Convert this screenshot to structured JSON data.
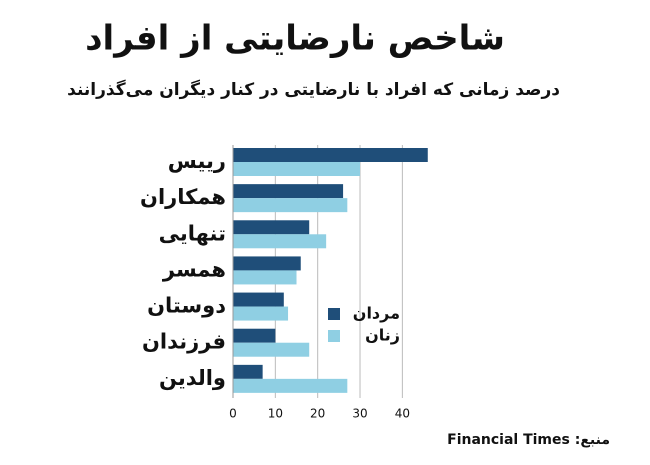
{
  "chart_data": {
    "type": "bar",
    "orientation": "horizontal",
    "title": "شاخص نارضایتی از افراد",
    "subtitle": "درصد زمانی که افراد با نارضایتی در کنار دیگران می‌گذرانند",
    "categories": [
      "رییس",
      "همکاران",
      "تنهایی",
      "همسر",
      "دوستان",
      "فرزندان",
      "والدین"
    ],
    "series": [
      {
        "name": "مردان",
        "color": "#1f4e79",
        "values": [
          46,
          26,
          18,
          16,
          12,
          10,
          7
        ]
      },
      {
        "name": "زنان",
        "color": "#8fcfe3",
        "values": [
          30,
          27,
          22,
          15,
          13,
          18,
          27
        ]
      }
    ],
    "xlim": [
      0,
      47
    ],
    "xticks": [
      0,
      10,
      20,
      30,
      40
    ],
    "grid": true,
    "source": "منبع: Financial Times"
  }
}
